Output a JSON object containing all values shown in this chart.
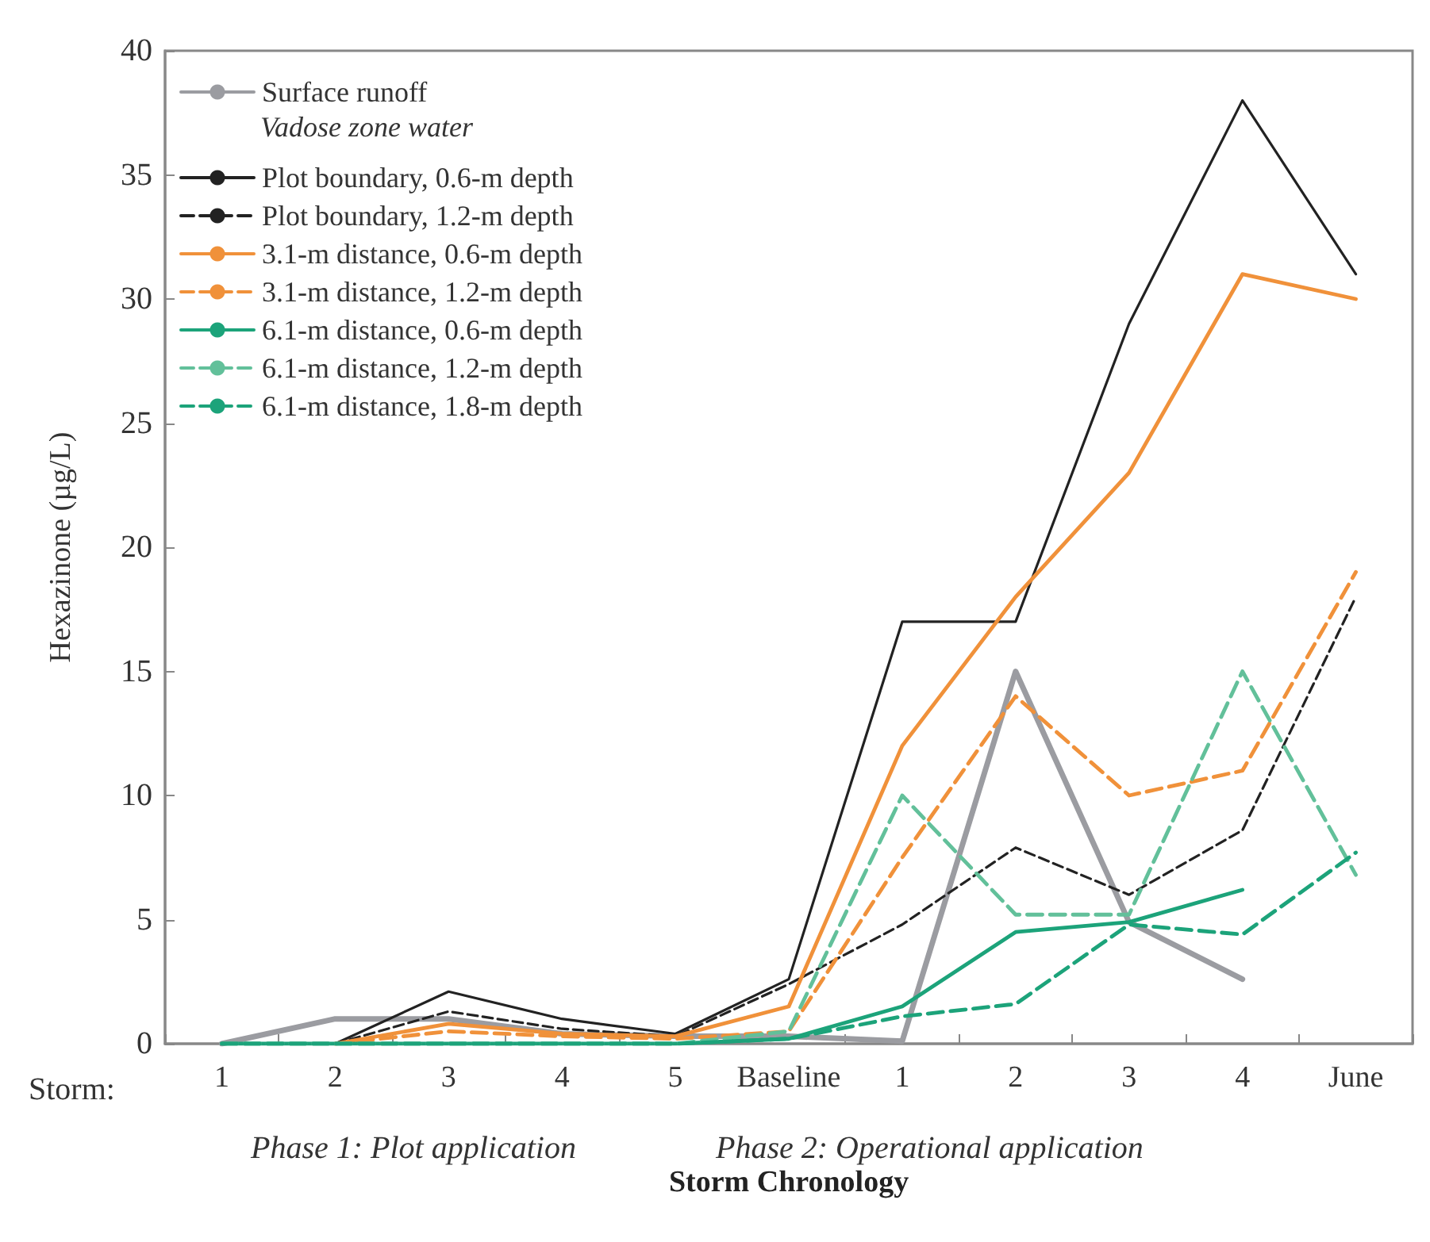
{
  "chart_data": {
    "type": "line",
    "xlabel": "Storm Chronology",
    "ylabel": "Hexazinone (µg/L)",
    "legend_title": "Vadose zone water",
    "categories": [
      "1",
      "2",
      "3",
      "4",
      "5",
      "Baseline",
      "1",
      "2",
      "3",
      "4",
      "June"
    ],
    "ylim": [
      0,
      40
    ],
    "yticks": [
      0,
      5,
      10,
      15,
      20,
      25,
      30,
      35,
      40
    ],
    "grid": false,
    "legend": "top left",
    "marker": "none",
    "annotations": [
      "Storm:",
      "Phase 1: Plot application",
      "Phase 2: Operational application"
    ],
    "series": [
      {
        "name": "Surface runoff",
        "color": "#9b9ca1",
        "line_style": "solid",
        "values": [
          0,
          1.0,
          1.0,
          0.4,
          0.3,
          0.3,
          0.1,
          15,
          4.9,
          2.6,
          null
        ]
      },
      {
        "name": "Plot boundary, 0.6-m depth",
        "color": "#222222",
        "line_style": "solid",
        "values": [
          null,
          0,
          2.1,
          1.0,
          0.4,
          2.6,
          17,
          17,
          29,
          38,
          31
        ]
      },
      {
        "name": "Plot boundary, 1.2-m depth",
        "color": "#222222",
        "line_style": "dashed",
        "values": [
          null,
          0,
          1.3,
          0.6,
          0.3,
          2.4,
          4.8,
          7.9,
          6.0,
          8.6,
          18
        ]
      },
      {
        "name": "3.1-m distance, 0.6-m depth",
        "color": "#f0913a",
        "line_style": "solid",
        "values": [
          null,
          0,
          0.8,
          0.4,
          0.3,
          1.5,
          12,
          18,
          23,
          31,
          30
        ]
      },
      {
        "name": "3.1-m distance, 1.2-m depth",
        "color": "#f0913a",
        "line_style": "dashed",
        "values": [
          null,
          0,
          0.5,
          0.3,
          0.2,
          0.5,
          7.5,
          14,
          10,
          11,
          19
        ]
      },
      {
        "name": "6.1-m distance, 0.6-m depth",
        "color": "#1ca37a",
        "line_style": "solid",
        "values": [
          0,
          0,
          0,
          0,
          0,
          0.2,
          1.5,
          4.5,
          4.9,
          6.2,
          null
        ]
      },
      {
        "name": "6.1-m distance, 1.2-m depth",
        "color": "#62c09a",
        "line_style": "dashed",
        "values": [
          0,
          0,
          0,
          0,
          0,
          0.5,
          10,
          5.2,
          5.2,
          15,
          6.8
        ]
      },
      {
        "name": "6.1-m distance, 1.8-m depth",
        "color": "#1ca37a",
        "line_style": "dashed",
        "values": [
          0,
          0,
          0,
          0,
          0,
          0.2,
          1.1,
          1.6,
          4.8,
          4.4,
          7.7
        ]
      }
    ]
  }
}
